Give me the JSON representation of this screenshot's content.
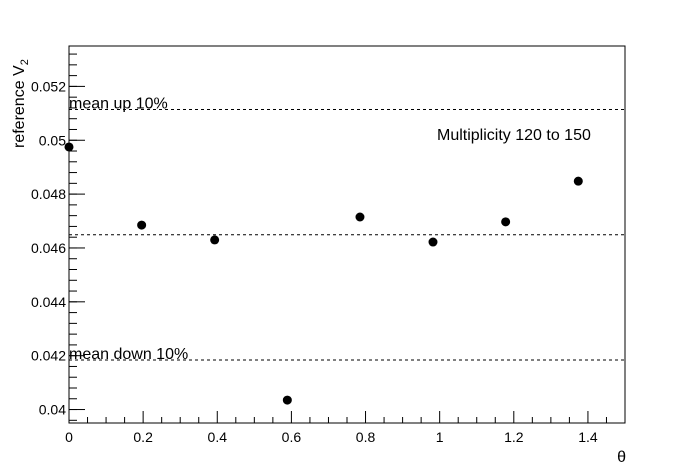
{
  "chart_data": {
    "type": "scatter",
    "title": "",
    "xlabel": "θ",
    "ylabel": "reference V",
    "ylabel_subscript": "2",
    "xlim": [
      0,
      1.5
    ],
    "ylim": [
      0.0395,
      0.0535
    ],
    "x_ticks": [
      0,
      0.2,
      0.4,
      0.6,
      0.8,
      1,
      1.2,
      1.4
    ],
    "x_tick_labels": [
      "0",
      "0.2",
      "0.4",
      "0.6",
      "0.8",
      "1",
      "1.2",
      "1.4"
    ],
    "y_ticks": [
      0.04,
      0.042,
      0.044,
      0.046,
      0.048,
      0.05,
      0.052
    ],
    "y_tick_labels": [
      "0.04",
      "0.042",
      "0.044",
      "0.046",
      "0.048",
      "0.05",
      "0.052"
    ],
    "grid": false,
    "points": [
      {
        "x": 0.0,
        "y": 0.04975
      },
      {
        "x": 0.196,
        "y": 0.04685
      },
      {
        "x": 0.393,
        "y": 0.0463
      },
      {
        "x": 0.589,
        "y": 0.04035
      },
      {
        "x": 0.785,
        "y": 0.04715
      },
      {
        "x": 0.982,
        "y": 0.04622
      },
      {
        "x": 1.178,
        "y": 0.04697
      },
      {
        "x": 1.374,
        "y": 0.04848
      }
    ],
    "reference_lines": [
      {
        "y": 0.05114,
        "label": "mean up 10%"
      },
      {
        "y": 0.04649,
        "label": ""
      },
      {
        "y": 0.04184,
        "label": "mean down 10%"
      }
    ],
    "annotation": "Multiplicity 120 to 150",
    "marker_color": "#000000"
  }
}
